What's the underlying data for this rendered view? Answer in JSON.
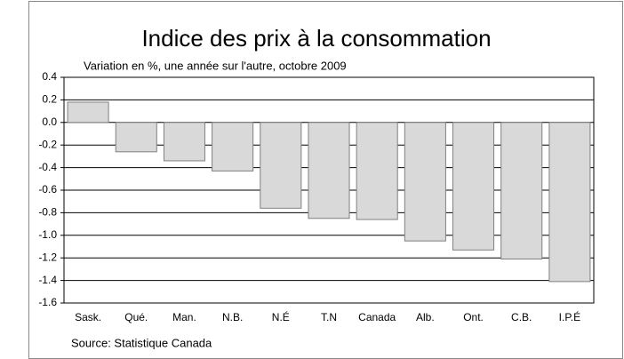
{
  "chart_data": {
    "type": "bar",
    "title": "Indice des prix à la consommation",
    "subtitle": "Variation en %, une année sur l'autre, octobre 2009",
    "source": "Source: Statistique Canada",
    "categories": [
      "Sask.",
      "Qué.",
      "Man.",
      "N.B.",
      "N.É",
      "T.N",
      "Canada",
      "Alb.",
      "Ont.",
      "C.B.",
      "I.P.É"
    ],
    "values": [
      0.18,
      -0.26,
      -0.34,
      -0.43,
      -0.76,
      -0.85,
      -0.86,
      -1.05,
      -1.13,
      -1.21,
      -1.41
    ],
    "color": "#d9d9d9",
    "ylim": [
      -1.6,
      0.4
    ],
    "yticks": [
      0.4,
      0.2,
      {
        "value": 0,
        "label": "0.0"
      },
      -0.2,
      -0.4,
      -0.6,
      -0.8,
      {
        "value": -1,
        "label": "-1.0"
      },
      -1.2,
      -1.4,
      -1.6
    ],
    "grid": true
  }
}
